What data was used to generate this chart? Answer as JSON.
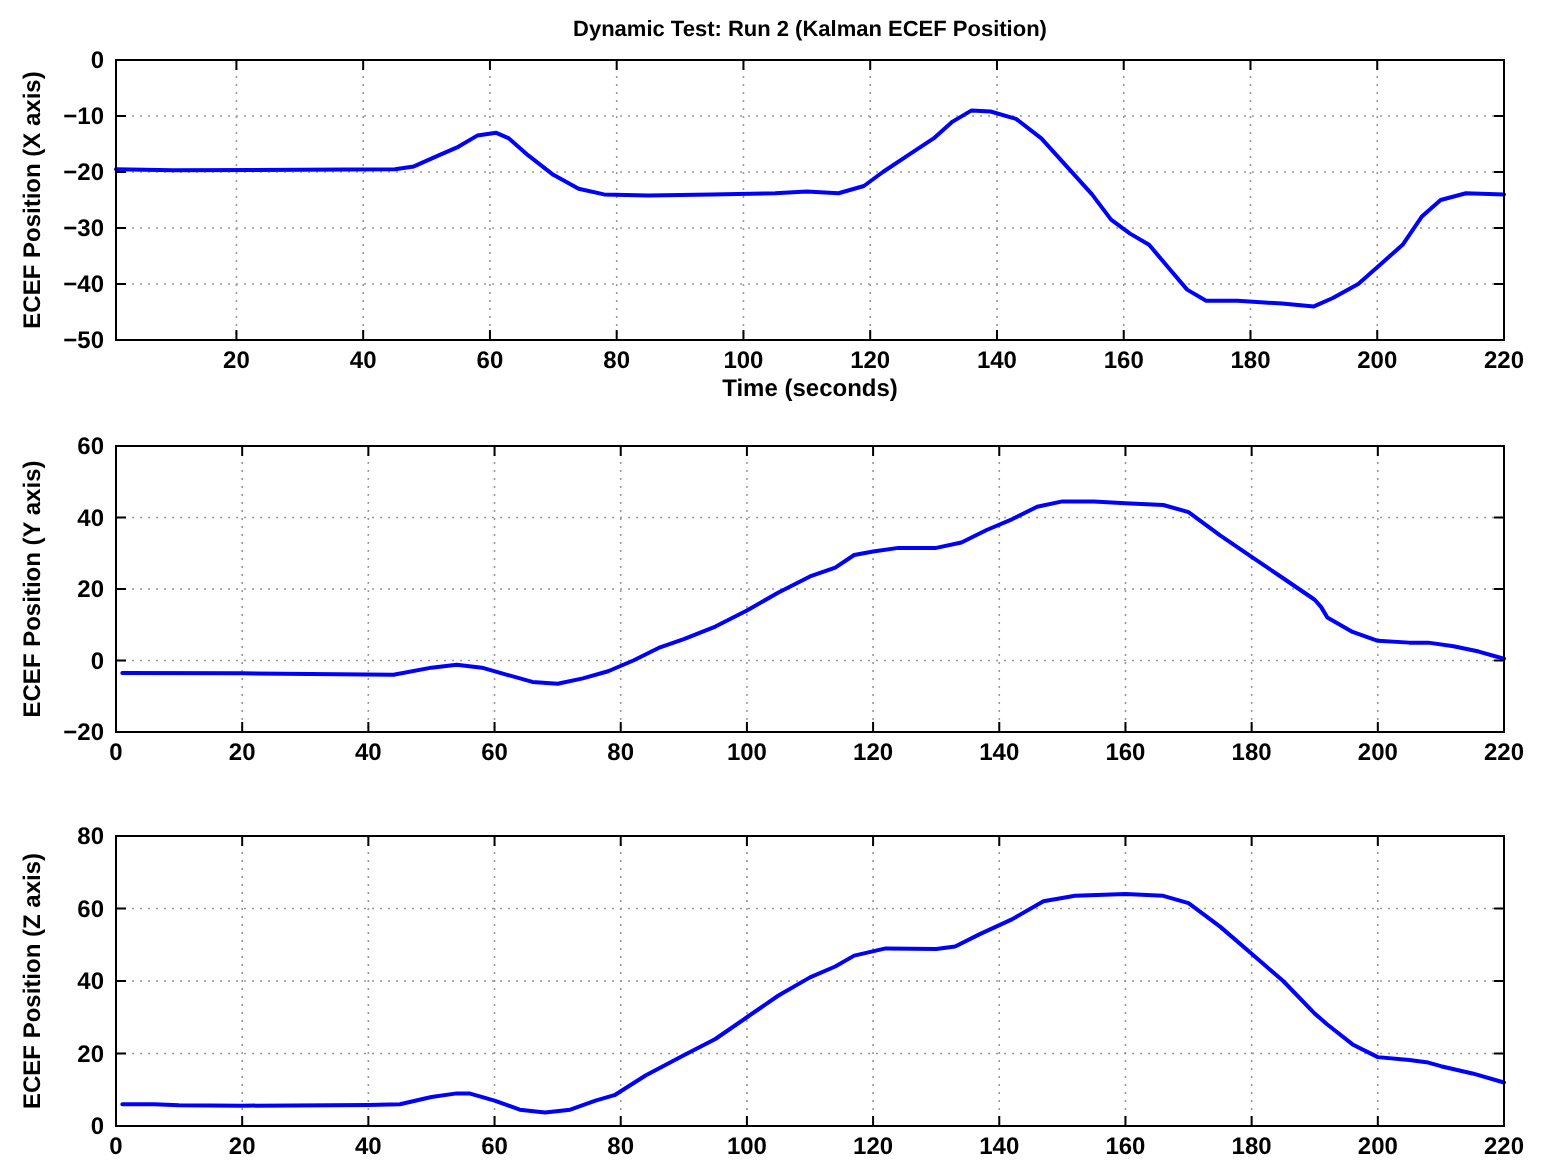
{
  "chart_data": [
    {
      "type": "line",
      "title": "Dynamic Test: Run 2 (Kalman ECEF Position)",
      "xlabel": "Time (seconds)",
      "ylabel": "ECEF Position (X axis)",
      "xlim": [
        1,
        220
      ],
      "xticks": [
        20,
        40,
        60,
        80,
        100,
        120,
        140,
        160,
        180,
        200,
        220
      ],
      "ylim": [
        -50,
        0
      ],
      "yticks": [
        -50,
        -40,
        -30,
        -20,
        -10,
        0
      ],
      "grid": true,
      "line_style": "solid",
      "marker": "none",
      "series": [
        {
          "color": "#0000ff",
          "x": [
            1,
            10,
            30,
            45,
            48,
            52,
            55,
            58,
            61,
            63,
            66,
            70,
            74,
            78,
            85,
            95,
            105,
            110,
            115,
            119,
            122,
            126,
            130,
            133,
            136,
            139,
            143,
            147,
            151,
            155,
            158,
            161,
            164,
            167,
            170,
            173,
            178,
            185,
            190,
            193,
            197,
            200,
            204,
            207,
            210,
            214,
            220
          ],
          "values": [
            -19.5,
            -19.7,
            -19.6,
            -19.5,
            -19,
            -17,
            -15.5,
            -13.5,
            -13,
            -14,
            -17,
            -20.5,
            -23,
            -24,
            -24.2,
            -24,
            -23.8,
            -23.5,
            -23.8,
            -22.5,
            -20,
            -17,
            -14,
            -11,
            -9,
            -9.2,
            -10.5,
            -14,
            -19,
            -24,
            -28.5,
            -31,
            -33,
            -37,
            -41,
            -43,
            -43,
            -43.5,
            -44,
            -42.5,
            -40,
            -37,
            -33,
            -28,
            -25,
            -23.8,
            -24
          ]
        }
      ]
    },
    {
      "type": "line",
      "ylabel": "ECEF Position (Y axis)",
      "xlim": [
        0,
        220
      ],
      "xticks": [
        0,
        20,
        40,
        60,
        80,
        100,
        120,
        140,
        160,
        180,
        200,
        220
      ],
      "ylim": [
        -20,
        60
      ],
      "yticks": [
        -20,
        0,
        20,
        40,
        60
      ],
      "grid": true,
      "line_style": "solid",
      "marker": "none",
      "series": [
        {
          "color": "#0000ff",
          "x": [
            1,
            20,
            44,
            50,
            54,
            58,
            62,
            66,
            70,
            74,
            78,
            82,
            86,
            90,
            95,
            100,
            105,
            110,
            114,
            117,
            120,
            124,
            130,
            134,
            138,
            142,
            146,
            150,
            155,
            160,
            166,
            170,
            175,
            180,
            185,
            190,
            191,
            192,
            196,
            200,
            205,
            208,
            212,
            216,
            220
          ],
          "values": [
            -3.5,
            -3.6,
            -4,
            -2,
            -1.2,
            -2,
            -4,
            -6,
            -6.5,
            -5,
            -3,
            0,
            3.5,
            6,
            9.5,
            14,
            19,
            23.5,
            26,
            29.5,
            30.5,
            31.5,
            31.5,
            33,
            36.5,
            39.5,
            43,
            44.5,
            44.5,
            44,
            43.5,
            41.5,
            35,
            29,
            23,
            17,
            15,
            12,
            8,
            5.5,
            5,
            5,
            4,
            2.5,
            0.5
          ]
        }
      ]
    },
    {
      "type": "line",
      "ylabel": "ECEF Position (Z axis)",
      "xlim": [
        0,
        220
      ],
      "xticks": [
        0,
        20,
        40,
        60,
        80,
        100,
        120,
        140,
        160,
        180,
        200,
        220
      ],
      "ylim": [
        0,
        80
      ],
      "yticks": [
        0,
        20,
        40,
        60,
        80
      ],
      "grid": true,
      "line_style": "solid",
      "marker": "none",
      "series": [
        {
          "color": "#0000ff",
          "x": [
            1,
            6,
            10,
            20,
            40,
            45,
            50,
            54,
            56,
            60,
            64,
            68,
            72,
            76,
            79,
            84,
            90,
            95,
            100,
            105,
            110,
            114,
            117,
            122,
            130,
            133,
            137,
            142,
            147,
            152,
            160,
            166,
            170,
            175,
            180,
            185,
            190,
            192,
            196,
            200,
            205,
            208,
            210,
            215,
            220
          ],
          "values": [
            6,
            6,
            5.7,
            5.6,
            5.8,
            6,
            8,
            9,
            9,
            7,
            4.5,
            3.7,
            4.5,
            7,
            8.5,
            14,
            19.5,
            24,
            30,
            36,
            41,
            44,
            47,
            49,
            48.8,
            49.5,
            53,
            57,
            62,
            63.5,
            64,
            63.5,
            61.5,
            55,
            47.5,
            40,
            31,
            28,
            22.5,
            19,
            18.2,
            17.5,
            16.5,
            14.5,
            12
          ]
        }
      ]
    }
  ]
}
